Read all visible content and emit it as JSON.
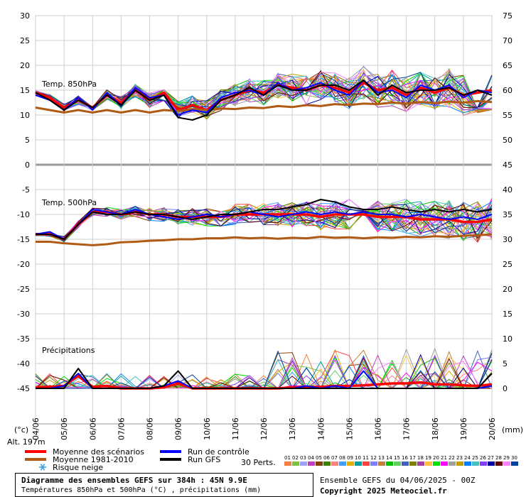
{
  "chart_data": {
    "type": "line",
    "left_axis_unit": "(°c)",
    "right_axis_unit": "(mm)",
    "left_ticks": [
      30,
      25,
      20,
      15,
      10,
      5,
      0,
      -5,
      -10,
      -15,
      -20,
      -25,
      -30,
      -35,
      -40,
      -45
    ],
    "right_ticks": [
      75,
      70,
      65,
      60,
      55,
      50,
      45,
      40,
      35,
      30,
      25,
      20,
      15,
      10,
      5,
      0
    ],
    "left_range": [
      -45,
      30
    ],
    "right_range": [
      0,
      75
    ],
    "x_labels": [
      "04/06",
      "05/06",
      "06/06",
      "07/06",
      "08/06",
      "09/06",
      "10/06",
      "11/06",
      "12/06",
      "13/06",
      "14/06",
      "15/06",
      "16/06",
      "17/06",
      "18/06",
      "19/06",
      "20/06"
    ],
    "hours_total": 384,
    "grid": true,
    "panel_labels": {
      "t850": "Temp. 850hPa",
      "t500": "Temp. 500hPa",
      "precip": "Précipitations"
    },
    "altitude": "Alt. 197m",
    "series": [
      {
        "name": "Moyenne des scénarios",
        "color": "#ff0000",
        "panel": "t850",
        "x_hours": [
          0,
          12,
          24,
          36,
          48,
          60,
          72,
          84,
          96,
          108,
          120,
          132,
          144,
          156,
          168,
          180,
          192,
          204,
          216,
          228,
          240,
          252,
          264,
          276,
          288,
          300,
          312,
          324,
          336,
          348,
          360,
          372,
          384
        ],
        "values": [
          14.5,
          13.5,
          11.5,
          13,
          11.5,
          14,
          12.5,
          15,
          13,
          14.5,
          11,
          12,
          11,
          13,
          14,
          15,
          14.5,
          16,
          15.5,
          15,
          16,
          15.5,
          14.5,
          16.5,
          15,
          15.5,
          14,
          15.5,
          14.5,
          15.5,
          14,
          14.5,
          15
        ]
      },
      {
        "name": "Moyenne 1981-2010",
        "color": "#b05a14",
        "panel": "t850",
        "x_hours": [
          0,
          12,
          24,
          36,
          48,
          60,
          72,
          84,
          96,
          108,
          120,
          132,
          144,
          156,
          168,
          180,
          192,
          204,
          216,
          228,
          240,
          252,
          264,
          276,
          288,
          300,
          312,
          324,
          336,
          348,
          360,
          372,
          384
        ],
        "values": [
          11.5,
          11,
          10.5,
          11,
          10.5,
          11,
          10.5,
          11,
          10.5,
          11,
          10.8,
          11.2,
          11,
          11.3,
          11.2,
          11.5,
          11.4,
          11.8,
          11.6,
          12,
          11.8,
          12.2,
          12,
          12.3,
          12.2,
          12.5,
          12.3,
          12.6,
          12.4,
          12.7,
          12.5,
          12.8,
          12.6
        ]
      },
      {
        "name": "Run de contrôle",
        "color": "#0000ff",
        "panel": "t850",
        "x_hours": [
          0,
          12,
          24,
          36,
          48,
          60,
          72,
          84,
          96,
          108,
          120,
          132,
          144,
          156,
          168,
          180,
          192,
          204,
          216,
          228,
          240,
          252,
          264,
          276,
          288,
          300,
          312,
          324,
          336,
          348,
          360,
          372,
          384
        ],
        "values": [
          14,
          13,
          11,
          13.5,
          11,
          14.5,
          12,
          15.5,
          13.5,
          14,
          10,
          11,
          10.5,
          13.5,
          14.5,
          15,
          14,
          16.5,
          15,
          15.5,
          16.5,
          15,
          14,
          17,
          14.5,
          15,
          13.5,
          16,
          15,
          16,
          13.5,
          15,
          14.5
        ]
      },
      {
        "name": "Run GFS",
        "color": "#000000",
        "panel": "t850",
        "x_hours": [
          0,
          12,
          24,
          36,
          48,
          60,
          72,
          84,
          96,
          108,
          120,
          132,
          144,
          156,
          168,
          180,
          192,
          204,
          216,
          228,
          240,
          252,
          264,
          276,
          288,
          300,
          312,
          324,
          336,
          348,
          360,
          372,
          384
        ],
        "values": [
          14.5,
          13,
          11,
          13,
          11.5,
          14,
          12,
          15,
          13,
          14,
          9.5,
          9,
          10,
          13,
          14,
          15.5,
          14,
          16,
          15,
          15,
          16,
          16,
          15,
          17,
          14,
          16,
          14.5,
          15,
          15,
          15.5,
          14,
          15,
          14
        ]
      },
      {
        "name": "Moyenne des scénarios",
        "color": "#ff0000",
        "panel": "t500",
        "x_hours": [
          0,
          12,
          24,
          36,
          48,
          60,
          72,
          84,
          96,
          108,
          120,
          132,
          144,
          156,
          168,
          180,
          192,
          204,
          216,
          228,
          240,
          252,
          264,
          276,
          288,
          300,
          312,
          324,
          336,
          348,
          360,
          372,
          384
        ],
        "values": [
          -14,
          -14,
          -15,
          -12,
          -9.5,
          -9.5,
          -10,
          -9.5,
          -10,
          -10,
          -10.5,
          -10.5,
          -10.5,
          -10.5,
          -10,
          -10,
          -10,
          -10,
          -10,
          -10,
          -10.5,
          -10,
          -10,
          -10,
          -10.5,
          -10.5,
          -10.5,
          -11,
          -11,
          -11,
          -11.5,
          -11.5,
          -11
        ]
      },
      {
        "name": "Moyenne 1981-2010",
        "color": "#b05a14",
        "panel": "t500",
        "x_hours": [
          0,
          12,
          24,
          36,
          48,
          60,
          72,
          84,
          96,
          108,
          120,
          132,
          144,
          156,
          168,
          180,
          192,
          204,
          216,
          228,
          240,
          252,
          264,
          276,
          288,
          300,
          312,
          324,
          336,
          348,
          360,
          372,
          384
        ],
        "values": [
          -15.5,
          -15.5,
          -15.8,
          -16,
          -16.2,
          -16,
          -15.6,
          -15.5,
          -15.3,
          -15.2,
          -15,
          -15,
          -14.8,
          -14.8,
          -14.6,
          -14.8,
          -14.7,
          -14.9,
          -14.7,
          -14.8,
          -14.5,
          -14.7,
          -14.6,
          -14.8,
          -14.6,
          -14.7,
          -14.5,
          -14.6,
          -14.4,
          -14.5,
          -14.3,
          -14.2,
          -14
        ]
      },
      {
        "name": "Run de contrôle",
        "color": "#0000ff",
        "panel": "t500",
        "x_hours": [
          0,
          12,
          24,
          36,
          48,
          60,
          72,
          84,
          96,
          108,
          120,
          132,
          144,
          156,
          168,
          180,
          192,
          204,
          216,
          228,
          240,
          252,
          264,
          276,
          288,
          300,
          312,
          324,
          336,
          348,
          360,
          372,
          384
        ],
        "values": [
          -14,
          -13.5,
          -15,
          -12,
          -9,
          -9.5,
          -10,
          -9,
          -10,
          -10.5,
          -11,
          -10.5,
          -10,
          -10.5,
          -10,
          -9.5,
          -10,
          -10.5,
          -10,
          -9.5,
          -10,
          -9.5,
          -10,
          -9.5,
          -10,
          -10,
          -10.5,
          -10,
          -10.5,
          -11,
          -10.5,
          -11,
          -10
        ]
      },
      {
        "name": "Run GFS",
        "color": "#000000",
        "panel": "t500",
        "x_hours": [
          0,
          12,
          24,
          36,
          48,
          60,
          72,
          84,
          96,
          108,
          120,
          132,
          144,
          156,
          168,
          180,
          192,
          204,
          216,
          228,
          240,
          252,
          264,
          276,
          288,
          300,
          312,
          324,
          336,
          348,
          360,
          372,
          384
        ],
        "values": [
          -14,
          -14,
          -15,
          -12,
          -9.5,
          -10,
          -10,
          -9.5,
          -10,
          -10,
          -10.5,
          -11,
          -10.5,
          -10,
          -10,
          -9.5,
          -9,
          -9,
          -8.5,
          -8,
          -7,
          -7.5,
          -8.5,
          -9,
          -9,
          -8.5,
          -9,
          -9.5,
          -9,
          -9.5,
          -9,
          -9.5,
          -9
        ]
      },
      {
        "name": "Moyenne des scénarios",
        "color": "#ff0000",
        "panel": "precip",
        "x_hours": [
          0,
          12,
          24,
          36,
          48,
          60,
          72,
          84,
          96,
          108,
          120,
          132,
          144,
          156,
          168,
          180,
          192,
          204,
          216,
          228,
          240,
          252,
          264,
          276,
          288,
          300,
          312,
          324,
          336,
          348,
          360,
          372,
          384
        ],
        "values": [
          0.2,
          0.3,
          0.5,
          2.5,
          0.3,
          0.5,
          0,
          0,
          0,
          0.2,
          1,
          0,
          0,
          0,
          0,
          0,
          0,
          0,
          0.2,
          0.3,
          0.3,
          0.5,
          0.5,
          0.6,
          0.8,
          1,
          1,
          1.2,
          0.8,
          0.8,
          0.6,
          0.5,
          0.8
        ]
      },
      {
        "name": "Run de contrôle",
        "color": "#0000ff",
        "panel": "precip",
        "x_hours": [
          0,
          12,
          24,
          36,
          48,
          60,
          72,
          84,
          96,
          108,
          120,
          132,
          144,
          156,
          168,
          180,
          192,
          204,
          216,
          228,
          240,
          252,
          264,
          276,
          288,
          300,
          312,
          324,
          336,
          348,
          360,
          372,
          384
        ],
        "values": [
          0,
          0,
          0.5,
          3,
          0,
          0,
          0,
          0,
          0,
          0.5,
          1.5,
          0,
          0,
          0,
          0,
          0,
          0,
          0,
          0,
          0.5,
          0,
          0.5,
          0,
          3.5,
          0,
          0,
          0,
          0,
          0,
          0,
          0,
          0,
          0.5
        ]
      },
      {
        "name": "Run GFS",
        "color": "#000000",
        "panel": "precip",
        "x_hours": [
          0,
          12,
          24,
          36,
          48,
          60,
          72,
          84,
          96,
          108,
          120,
          132,
          144,
          156,
          168,
          180,
          192,
          204,
          216,
          228,
          240,
          252,
          264,
          276,
          288,
          300,
          312,
          324,
          336,
          348,
          360,
          372,
          384
        ],
        "values": [
          0,
          0,
          0,
          4,
          0,
          0,
          0,
          0,
          0,
          0.5,
          3.5,
          0,
          0,
          0,
          0,
          0,
          0,
          0,
          0,
          0,
          0,
          0,
          0,
          0,
          0,
          0,
          0,
          0,
          0,
          0,
          0,
          0,
          3
        ]
      }
    ],
    "perturbations_label": "30 Perts.",
    "perturbation_ids": [
      "01",
      "02",
      "03",
      "04",
      "05",
      "06",
      "07",
      "08",
      "09",
      "10",
      "11",
      "12",
      "13",
      "14",
      "15",
      "16",
      "17",
      "18",
      "19",
      "20",
      "21",
      "22",
      "23",
      "24",
      "25",
      "26",
      "27",
      "28",
      "29",
      "30"
    ],
    "perturbation_colors": [
      "#f08040",
      "#80c040",
      "#a0a0ff",
      "#c040c0",
      "#804000",
      "#408000",
      "#ff8080",
      "#40a0ff",
      "#e0b000",
      "#00a0a0",
      "#ff4040",
      "#8080ff",
      "#c08040",
      "#00c000",
      "#60d060",
      "#4060c0",
      "#808000",
      "#a040a0",
      "#ffc040",
      "#00e000",
      "#ff00ff",
      "#a0a0a0",
      "#c0a000",
      "#0080ff",
      "#40c0c0",
      "#8040ff",
      "#0000a0",
      "#600000",
      "#ff80ff",
      "#0040a0"
    ]
  },
  "legend": {
    "mean": "Moyenne des scénarios",
    "climatology": "Moyenne 1981-2010",
    "snow": "Risque neige",
    "control": "Run de contrôle",
    "gfs": "Run GFS"
  },
  "footer": {
    "title": "Diagramme des ensembles GEFS sur 384h : 45N 9.9E",
    "subtitle": "Températures 850hPa et 500hPa (°C) , précipitations (mm)",
    "ensemble": "Ensemble GEFS du 04/06/2025 - 00Z",
    "copyright": "Copyright 2025 Meteociel.fr"
  },
  "colors": {
    "mean": "#ff0000",
    "climatology": "#b05a14",
    "control": "#0000ff",
    "gfs": "#000000",
    "grid": "#c8c8c8",
    "snow_icon": "#40a0e0"
  }
}
